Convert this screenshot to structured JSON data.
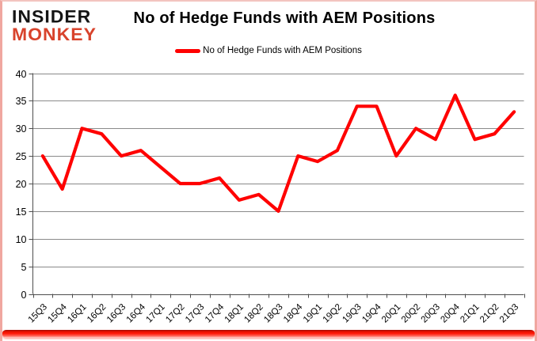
{
  "header": {
    "logo": {
      "line1": "INSIDER",
      "line2": "MONKEY"
    },
    "title": "No of Hedge Funds with AEM Positions"
  },
  "legend": {
    "label": "No of Hedge Funds with AEM Positions"
  },
  "colors": {
    "series_line": "#ff0000",
    "logo_black": "#141414",
    "logo_red": "#d8432c",
    "gridline": "#8a8a8a",
    "axis": "#4d4d4d",
    "tick_text": "#000000",
    "border_pink": "#f0a7a0",
    "bottom_bar_red": "#ff1a08"
  },
  "chart_data": {
    "type": "line",
    "title": "No of Hedge Funds with AEM Positions",
    "categories": [
      "15Q3",
      "15Q4",
      "16Q1",
      "16Q2",
      "16Q3",
      "16Q4",
      "17Q1",
      "17Q2",
      "17Q3",
      "17Q4",
      "18Q1",
      "18Q2",
      "18Q3",
      "18Q4",
      "19Q1",
      "19Q2",
      "19Q3",
      "19Q4",
      "20Q1",
      "20Q2",
      "20Q3",
      "20Q4",
      "21Q1",
      "21Q2",
      "21Q3"
    ],
    "series": [
      {
        "name": "No of Hedge Funds with AEM Positions",
        "color": "#ff0000",
        "values": [
          25,
          19,
          30,
          29,
          25,
          26,
          23,
          20,
          20,
          21,
          17,
          18,
          15,
          25,
          24,
          26,
          34,
          34,
          25,
          30,
          28,
          36,
          28,
          29,
          33
        ]
      }
    ],
    "xlabel": "",
    "ylabel": "",
    "ylim": [
      0,
      40
    ],
    "ytick_step": 5,
    "grid": true,
    "legend_position": "top-center",
    "x_label_rotation_deg": -45
  }
}
